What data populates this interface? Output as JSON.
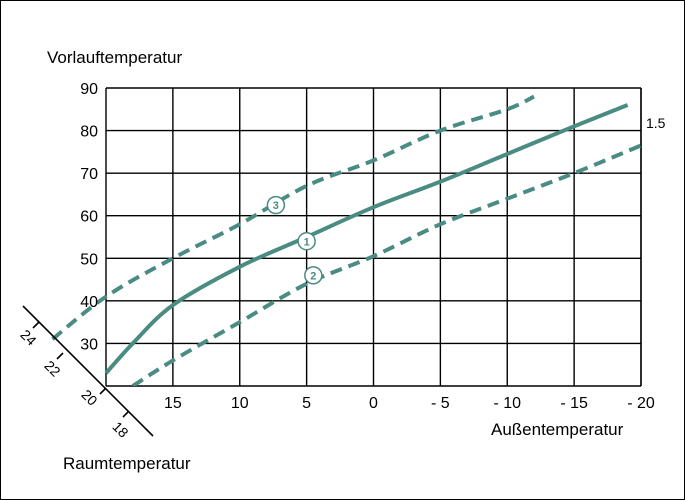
{
  "chart_data": {
    "type": "line",
    "ylabel": "Vorlauftemperatur",
    "xlabel": "Außentemperatur",
    "room_axis_label": "Raumtemperatur",
    "curve_label": "1.5",
    "xlim": [
      20,
      -20
    ],
    "ylim": [
      20,
      90
    ],
    "x_ticks": [
      15,
      10,
      5,
      0,
      -5,
      -10,
      -15,
      -20
    ],
    "x_tick_labels": [
      "15",
      "10",
      "5",
      "0",
      "- 5",
      "- 10",
      "- 15",
      "- 20"
    ],
    "y_ticks": [
      30,
      40,
      50,
      60,
      70,
      80,
      90
    ],
    "y_tick_labels": [
      "30",
      "40",
      "50",
      "60",
      "70",
      "80",
      "90"
    ],
    "room_ticks": [
      "24",
      "22",
      "20",
      "18"
    ],
    "grid": true,
    "line_color": "#4a8c82",
    "series": [
      {
        "name": "1",
        "style": "solid",
        "x": [
          20,
          18,
          15,
          10,
          5,
          0,
          -5,
          -10,
          -15,
          -19
        ],
        "y": [
          23,
          30,
          39,
          48,
          55,
          62,
          68,
          74.5,
          81,
          86
        ]
      },
      {
        "name": "2",
        "style": "dashed",
        "x": [
          18,
          15,
          10,
          5,
          0,
          -5,
          -10,
          -15,
          -20
        ],
        "y": [
          20,
          26,
          35,
          44,
          50.5,
          58,
          64,
          70,
          76.5
        ]
      },
      {
        "name": "3",
        "style": "dashed",
        "x": [
          24,
          20,
          15,
          10,
          5,
          0,
          -5,
          -10,
          -12
        ],
        "y": [
          31,
          41,
          50,
          58,
          67,
          73,
          80,
          85,
          88
        ]
      }
    ],
    "markers": [
      {
        "label": "1",
        "x": 5,
        "y": 54
      },
      {
        "label": "2",
        "x": 4.5,
        "y": 46
      },
      {
        "label": "3",
        "x": 7.3,
        "y": 62.5
      }
    ]
  }
}
